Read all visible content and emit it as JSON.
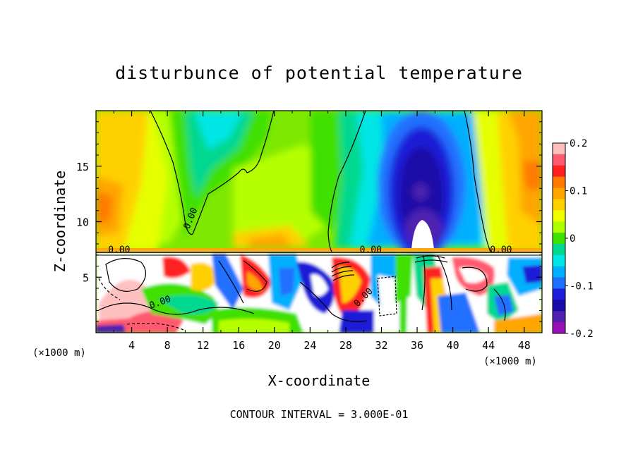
{
  "chart_data": {
    "type": "heatmap",
    "title": "disturbunce of potential temperature",
    "xlabel": "X-coordinate",
    "ylabel": "Z-coordinate",
    "x_unit": "(×1000 m)",
    "x_unit_right": "(×1000 m)",
    "footer": "CONTOUR INTERVAL = 3.000E-01",
    "xlim": [
      0,
      50
    ],
    "ylim": [
      0,
      20
    ],
    "x_ticks": [
      4,
      8,
      12,
      16,
      20,
      24,
      28,
      32,
      36,
      40,
      44,
      48
    ],
    "y_ticks": [
      5,
      10,
      15
    ],
    "colorbar": {
      "range": [
        -0.2,
        0.2
      ],
      "labels": [
        "0.2",
        "0.1",
        "0",
        "-0.1",
        "-0.2"
      ],
      "label_values": [
        0.2,
        0.1,
        0,
        -0.1,
        -0.2
      ],
      "colors": [
        "#ffc0c0",
        "#ff5a70",
        "#ff2020",
        "#ff7a00",
        "#ffa500",
        "#ffd000",
        "#f0ff00",
        "#b0ff00",
        "#40e000",
        "#00d890",
        "#00e6e6",
        "#00b0ff",
        "#2070ff",
        "#1e1ed8",
        "#1a0aa8",
        "#5020b0",
        "#9a10b8"
      ]
    },
    "contour_labels": [
      {
        "text": "0.00",
        "x": 10.9,
        "z": 10.2,
        "rotation": -68
      },
      {
        "text": "0.00",
        "x": 2.6,
        "z": 7.2,
        "rotation": 0
      },
      {
        "text": "0.00",
        "x": 45.4,
        "z": 7.2,
        "rotation": 0
      },
      {
        "text": "0.00",
        "x": 7.3,
        "z": 2.5,
        "rotation": -20
      },
      {
        "text": "0.00",
        "x": 30.2,
        "z": 3.0,
        "rotation": -45
      },
      {
        "text": "0.00",
        "x": 30.8,
        "z": 7.2,
        "rotation": 0
      }
    ]
  }
}
